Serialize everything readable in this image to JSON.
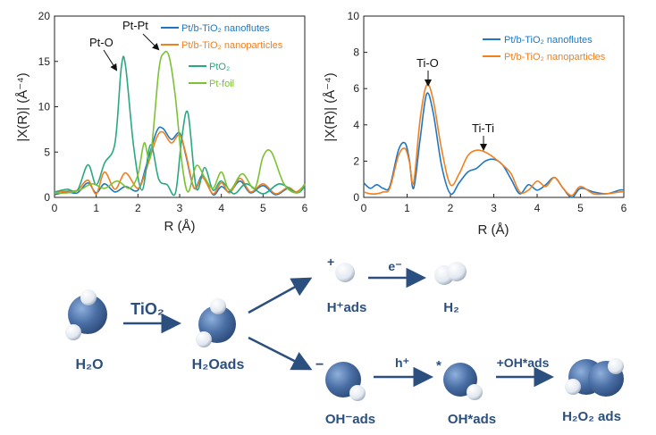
{
  "colors": {
    "nanoflutes": "#1f77c4",
    "nanoparticles": "#f08020",
    "pto2": "#2aa882",
    "ptfoil": "#7cc234",
    "scheme": "#2b4f7e",
    "sphere": "#4a6fa5"
  },
  "chart_data": [
    {
      "type": "line",
      "xlabel": "R (Å)",
      "ylabel": "|X(R)| (Å⁻⁴)",
      "xlim": [
        0,
        6
      ],
      "ylim": [
        0,
        20
      ],
      "xticks": [
        "0",
        "1",
        "2",
        "3",
        "4",
        "5",
        "6"
      ],
      "yticks": [
        "0",
        "5",
        "10",
        "15",
        "20"
      ],
      "grid": false,
      "legend_position": "top-right",
      "annotations": [
        "Pt-O",
        "Pt-Pt"
      ],
      "series": [
        {
          "name": "Pt/b-TiO₂ nanoflutes",
          "color": "nanoflutes",
          "x": [
            0,
            0.3,
            0.55,
            0.8,
            1.0,
            1.2,
            1.45,
            1.7,
            2.0,
            2.2,
            2.45,
            2.6,
            2.8,
            3.0,
            3.15,
            3.35,
            3.55,
            3.8,
            4.0,
            4.2,
            4.45,
            4.7,
            5.0,
            5.3,
            5.6,
            5.8,
            6.0
          ],
          "y": [
            0.3,
            0.6,
            0.5,
            1.6,
            0.5,
            1.5,
            0.6,
            1.2,
            0.8,
            3.5,
            7.3,
            7.6,
            6.4,
            7.1,
            4.6,
            1.0,
            2.4,
            0.3,
            1.2,
            0.6,
            1.8,
            0.5,
            1.3,
            0.3,
            1.0,
            0.6,
            1.2
          ]
        },
        {
          "name": "Pt/b-TiO₂ nanoparticles",
          "color": "nanoparticles",
          "x": [
            0,
            0.3,
            0.55,
            0.8,
            1.0,
            1.2,
            1.45,
            1.7,
            2.0,
            2.2,
            2.45,
            2.6,
            2.8,
            3.0,
            3.15,
            3.35,
            3.55,
            3.8,
            4.0,
            4.2,
            4.45,
            4.7,
            5.0,
            5.3,
            5.6,
            5.8,
            6.0
          ],
          "y": [
            0.6,
            0.7,
            0.8,
            1.9,
            0.4,
            2.8,
            0.9,
            2.7,
            1.0,
            3.1,
            6.6,
            7.2,
            6.0,
            6.9,
            4.8,
            1.0,
            2.2,
            0.4,
            1.6,
            0.5,
            2.1,
            0.6,
            1.5,
            0.4,
            1.1,
            0.6,
            1.4
          ]
        },
        {
          "name": "PtO₂",
          "color": "pto2",
          "x": [
            0,
            0.3,
            0.55,
            0.8,
            1.0,
            1.2,
            1.45,
            1.6,
            1.7,
            1.9,
            2.1,
            2.3,
            2.5,
            2.7,
            2.9,
            3.05,
            3.2,
            3.4,
            3.6,
            3.8,
            4.0,
            4.3,
            4.6,
            5.0,
            5.4,
            5.8,
            6.0
          ],
          "y": [
            0.6,
            0.9,
            0.8,
            3.6,
            1.4,
            3.8,
            6.0,
            14.3,
            14.6,
            5.5,
            0.8,
            5.8,
            2.0,
            1.4,
            0.5,
            6.5,
            9.3,
            1.0,
            3.3,
            0.8,
            1.8,
            0.4,
            1.5,
            0.4,
            1.5,
            0.5,
            1.2
          ]
        },
        {
          "name": "Pt-foil",
          "color": "ptfoil",
          "x": [
            0,
            0.3,
            0.6,
            0.9,
            1.2,
            1.5,
            1.8,
            2.0,
            2.15,
            2.3,
            2.5,
            2.62,
            2.75,
            2.9,
            3.05,
            3.2,
            3.4,
            3.6,
            3.8,
            4.0,
            4.2,
            4.5,
            4.8,
            5.0,
            5.2,
            5.5,
            5.8,
            6.0
          ],
          "y": [
            0.5,
            0.5,
            0.8,
            1.5,
            1.0,
            1.8,
            1.0,
            2.5,
            6.0,
            4.5,
            14.0,
            15.9,
            15.5,
            11.0,
            4.0,
            0.6,
            3.5,
            2.2,
            1.0,
            2.8,
            0.8,
            2.6,
            1.0,
            4.5,
            5.0,
            1.5,
            0.5,
            1.5
          ]
        }
      ]
    },
    {
      "type": "line",
      "xlabel": "R (Å)",
      "ylabel": "|X(R)| (Å⁻⁴)",
      "xlim": [
        0,
        6
      ],
      "ylim": [
        0,
        10
      ],
      "xticks": [
        "0",
        "1",
        "2",
        "3",
        "4",
        "5",
        "6"
      ],
      "yticks": [
        "0",
        "2",
        "4",
        "6",
        "8",
        "10"
      ],
      "grid": false,
      "legend_position": "top-right",
      "annotations": [
        "Ti-O",
        "Ti-Ti"
      ],
      "series": [
        {
          "name": "Pt/b-TiO₂ nanoflutes",
          "color": "nanoflutes",
          "x": [
            0,
            0.15,
            0.3,
            0.45,
            0.6,
            0.8,
            0.95,
            1.05,
            1.15,
            1.3,
            1.45,
            1.6,
            1.8,
            2.0,
            2.2,
            2.4,
            2.6,
            2.8,
            3.0,
            3.2,
            3.4,
            3.6,
            3.8,
            4.0,
            4.2,
            4.4,
            4.6,
            4.8,
            5.0,
            5.3,
            5.6,
            5.9,
            6.0
          ],
          "y": [
            0.8,
            0.5,
            0.7,
            0.5,
            0.6,
            2.6,
            3.0,
            2.1,
            0.5,
            3.2,
            5.7,
            4.7,
            1.7,
            0.2,
            0.8,
            1.4,
            1.6,
            2.0,
            2.1,
            1.8,
            1.0,
            0.2,
            0.7,
            0.4,
            0.7,
            1.1,
            0.5,
            0.0,
            0.5,
            0.3,
            0.2,
            0.4,
            0.4
          ]
        },
        {
          "name": "Pt/b-TiO₂ nanoparticles",
          "color": "nanoparticles",
          "x": [
            0,
            0.15,
            0.3,
            0.45,
            0.6,
            0.8,
            0.95,
            1.05,
            1.15,
            1.3,
            1.45,
            1.6,
            1.8,
            2.0,
            2.2,
            2.4,
            2.6,
            2.8,
            3.0,
            3.2,
            3.4,
            3.6,
            3.8,
            4.0,
            4.2,
            4.4,
            4.6,
            4.8,
            5.0,
            5.3,
            5.6,
            5.9,
            6.0
          ],
          "y": [
            0.3,
            0.2,
            0.2,
            0.3,
            0.5,
            2.3,
            2.7,
            2.0,
            0.8,
            4.3,
            6.2,
            5.4,
            2.6,
            0.7,
            1.3,
            2.3,
            2.6,
            2.5,
            2.2,
            1.8,
            1.3,
            0.3,
            0.4,
            0.9,
            0.6,
            1.1,
            0.5,
            0.1,
            0.6,
            0.2,
            0.2,
            0.3,
            0.3
          ]
        }
      ]
    }
  ],
  "scheme": {
    "arrow_tio2": "TiO₂",
    "arrow_e": "e⁻",
    "arrow_h": "h⁺",
    "arrow_oh": "+OH*ads",
    "plus_sign": "+",
    "minus_sign": "−",
    "star_sign": "*",
    "labels": {
      "h2o": "H₂O",
      "h2o_ads": "H₂Oads",
      "h_ads": "H⁺ads",
      "h2": "H₂",
      "oh_ads": "OH⁻ads",
      "oh_star": "OH*ads",
      "h2o2": "H₂O₂ ads"
    }
  }
}
